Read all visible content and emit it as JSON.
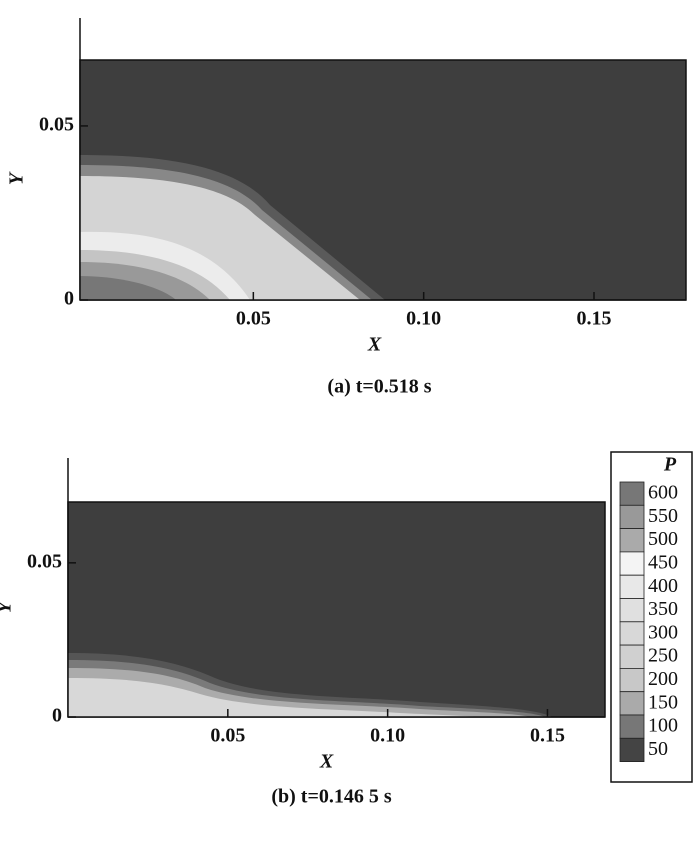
{
  "chart_data": [
    {
      "type": "contour",
      "title": "(a) t=0.518 s",
      "xlabel": "X",
      "ylabel": "Y",
      "xlim": [
        0,
        0.177
      ],
      "ylim": [
        0,
        0.081
      ],
      "xticks": [
        0.05,
        {
          "value": 0.1,
          "label": "0.10"
        },
        0.15
      ],
      "yticks": [
        0,
        0.05
      ]
    },
    {
      "type": "contour",
      "title": "(b) t=0.146 5 s",
      "xlabel": "X",
      "ylabel": "Y",
      "xlim": [
        0,
        0.168
      ],
      "ylim": [
        0,
        0.084
      ],
      "xticks": [
        0.05,
        {
          "value": 0.1,
          "label": "0.10"
        },
        0.15
      ],
      "yticks": [
        0,
        0.05
      ],
      "colorbar": {
        "title": "P",
        "levels": [
          600,
          550,
          500,
          450,
          400,
          350,
          300,
          250,
          200,
          150,
          100,
          50
        ],
        "colors": [
          "#777777",
          "#999999",
          "#aaaaaa",
          "#f4f4f4",
          "#e8e8e8",
          "#e0e0e0",
          "#d8d8d8",
          "#d0d0d0",
          "#c8c8c8",
          "#aaaaaa",
          "#777777",
          "#444444"
        ]
      }
    }
  ]
}
